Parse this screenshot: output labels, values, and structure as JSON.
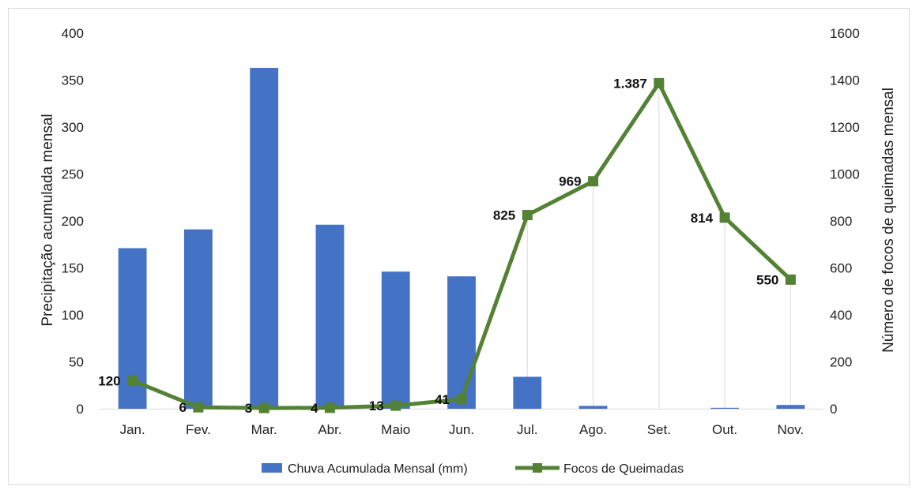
{
  "chart_data": {
    "type": "bar+line",
    "categories": [
      "Jan.",
      "Fev.",
      "Mar.",
      "Abr.",
      "Maio",
      "Jun.",
      "Jul.",
      "Ago.",
      "Set.",
      "Out.",
      "Nov."
    ],
    "series": [
      {
        "name": "Chuva Acumulada Mensal (mm)",
        "type": "bar",
        "axis": "left",
        "color": "#4472C4",
        "values": [
          171,
          191,
          363,
          196,
          146,
          141,
          34,
          3,
          0,
          1,
          4
        ]
      },
      {
        "name": "Focos de Queimadas",
        "type": "line",
        "axis": "right",
        "color": "#548235",
        "values": [
          120,
          6,
          3,
          4,
          13,
          41,
          825,
          969,
          1387,
          814,
          550
        ],
        "data_labels": [
          "120",
          "6",
          "3",
          "4",
          "13",
          "41",
          "825",
          "969",
          "1.387",
          "814",
          "550"
        ]
      }
    ],
    "ylabel_left": "Precipitação acumulada mensal",
    "ylabel_right": "Número de focos de queimadas mensal",
    "ylim_left": [
      0,
      400
    ],
    "ylim_right": [
      0,
      1600
    ],
    "yticks_left": [
      0,
      50,
      100,
      150,
      200,
      250,
      300,
      350,
      400
    ],
    "yticks_right": [
      0,
      200,
      400,
      600,
      800,
      1000,
      1200,
      1400,
      1600
    ],
    "grid": "vertical",
    "legend_position": "bottom"
  }
}
